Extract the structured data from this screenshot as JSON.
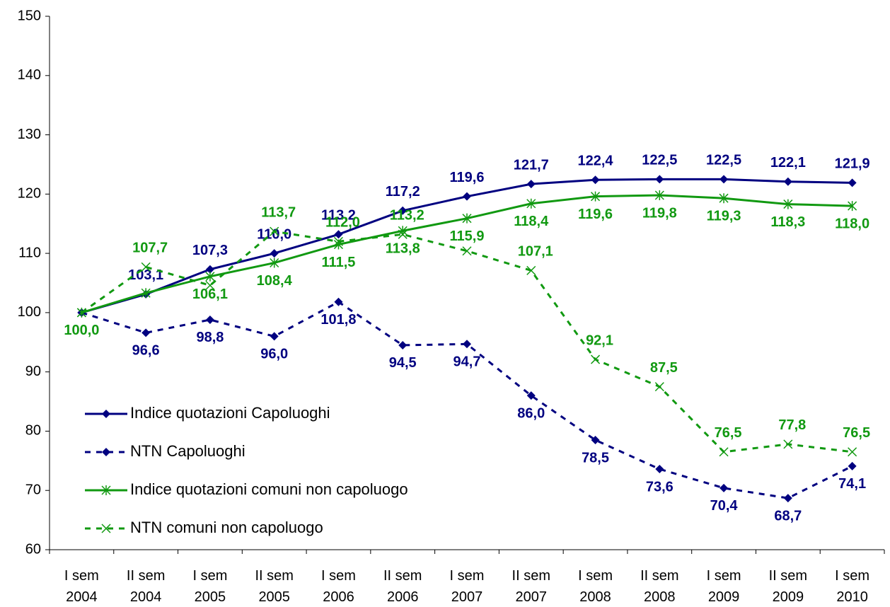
{
  "chart_data": {
    "type": "line",
    "categories": [
      "I sem\n2004",
      "II sem\n2004",
      "I sem\n2005",
      "II sem\n2005",
      "I sem\n2006",
      "II sem\n2006",
      "I sem\n2007",
      "II sem\n2007",
      "I sem\n2008",
      "II sem\n2008",
      "I sem\n2009",
      "II sem\n2009",
      "I sem\n2010"
    ],
    "ylim": [
      60,
      150
    ],
    "yticks": [
      60,
      70,
      80,
      90,
      100,
      110,
      120,
      130,
      140,
      150
    ],
    "legend": "lower left",
    "series": [
      {
        "name": "Indice quotazioni Capoluoghi",
        "color": "#000080",
        "style": "solid",
        "marker": "diamond",
        "values": [
          100.0,
          103.1,
          107.3,
          110.0,
          113.2,
          117.2,
          119.6,
          121.7,
          122.4,
          122.5,
          122.5,
          122.1,
          121.9
        ],
        "value_labels": [
          null,
          "103,1",
          "107,3",
          "110,0",
          "113,2",
          "117,2",
          "119,6",
          "121,7",
          "122,4",
          "122,5",
          "122,5",
          "122,1",
          "121,9"
        ]
      },
      {
        "name": "NTN Capoluoghi",
        "color": "#000080",
        "style": "dashed",
        "marker": "diamond",
        "values": [
          100.0,
          96.6,
          98.8,
          96.0,
          101.8,
          94.5,
          94.7,
          86.0,
          78.5,
          73.6,
          70.4,
          68.7,
          74.1
        ],
        "value_labels": [
          null,
          "96,6",
          "98,8",
          "96,0",
          "101,8",
          "94,5",
          "94,7",
          "86,0",
          "78,5",
          "73,6",
          "70,4",
          "68,7",
          "74,1"
        ]
      },
      {
        "name": "Indice quotazioni comuni non capoluogo",
        "color": "#119911",
        "style": "solid",
        "marker": "star",
        "values": [
          100.0,
          103.3,
          106.1,
          108.4,
          111.5,
          113.8,
          115.9,
          118.4,
          119.6,
          119.8,
          119.3,
          118.3,
          118.0
        ],
        "value_labels": [
          "100,0",
          null,
          "106,1",
          "108,4",
          "111,5",
          "113,8",
          "115,9",
          "118,4",
          "119,6",
          "119,8",
          "119,3",
          "118,3",
          "118,0"
        ]
      },
      {
        "name": "NTN comuni non capoluogo",
        "color": "#119911",
        "style": "dashed",
        "marker": "x",
        "values": [
          100.0,
          107.7,
          104.6,
          113.7,
          112.0,
          113.2,
          110.4,
          107.1,
          92.1,
          87.5,
          76.5,
          77.8,
          76.5
        ],
        "value_labels": [
          null,
          "107,7",
          null,
          "113,7",
          "112,0",
          "113,2",
          null,
          "107,1",
          "92,1",
          "87,5",
          "76,5",
          "77,8",
          "76,5"
        ]
      }
    ]
  }
}
